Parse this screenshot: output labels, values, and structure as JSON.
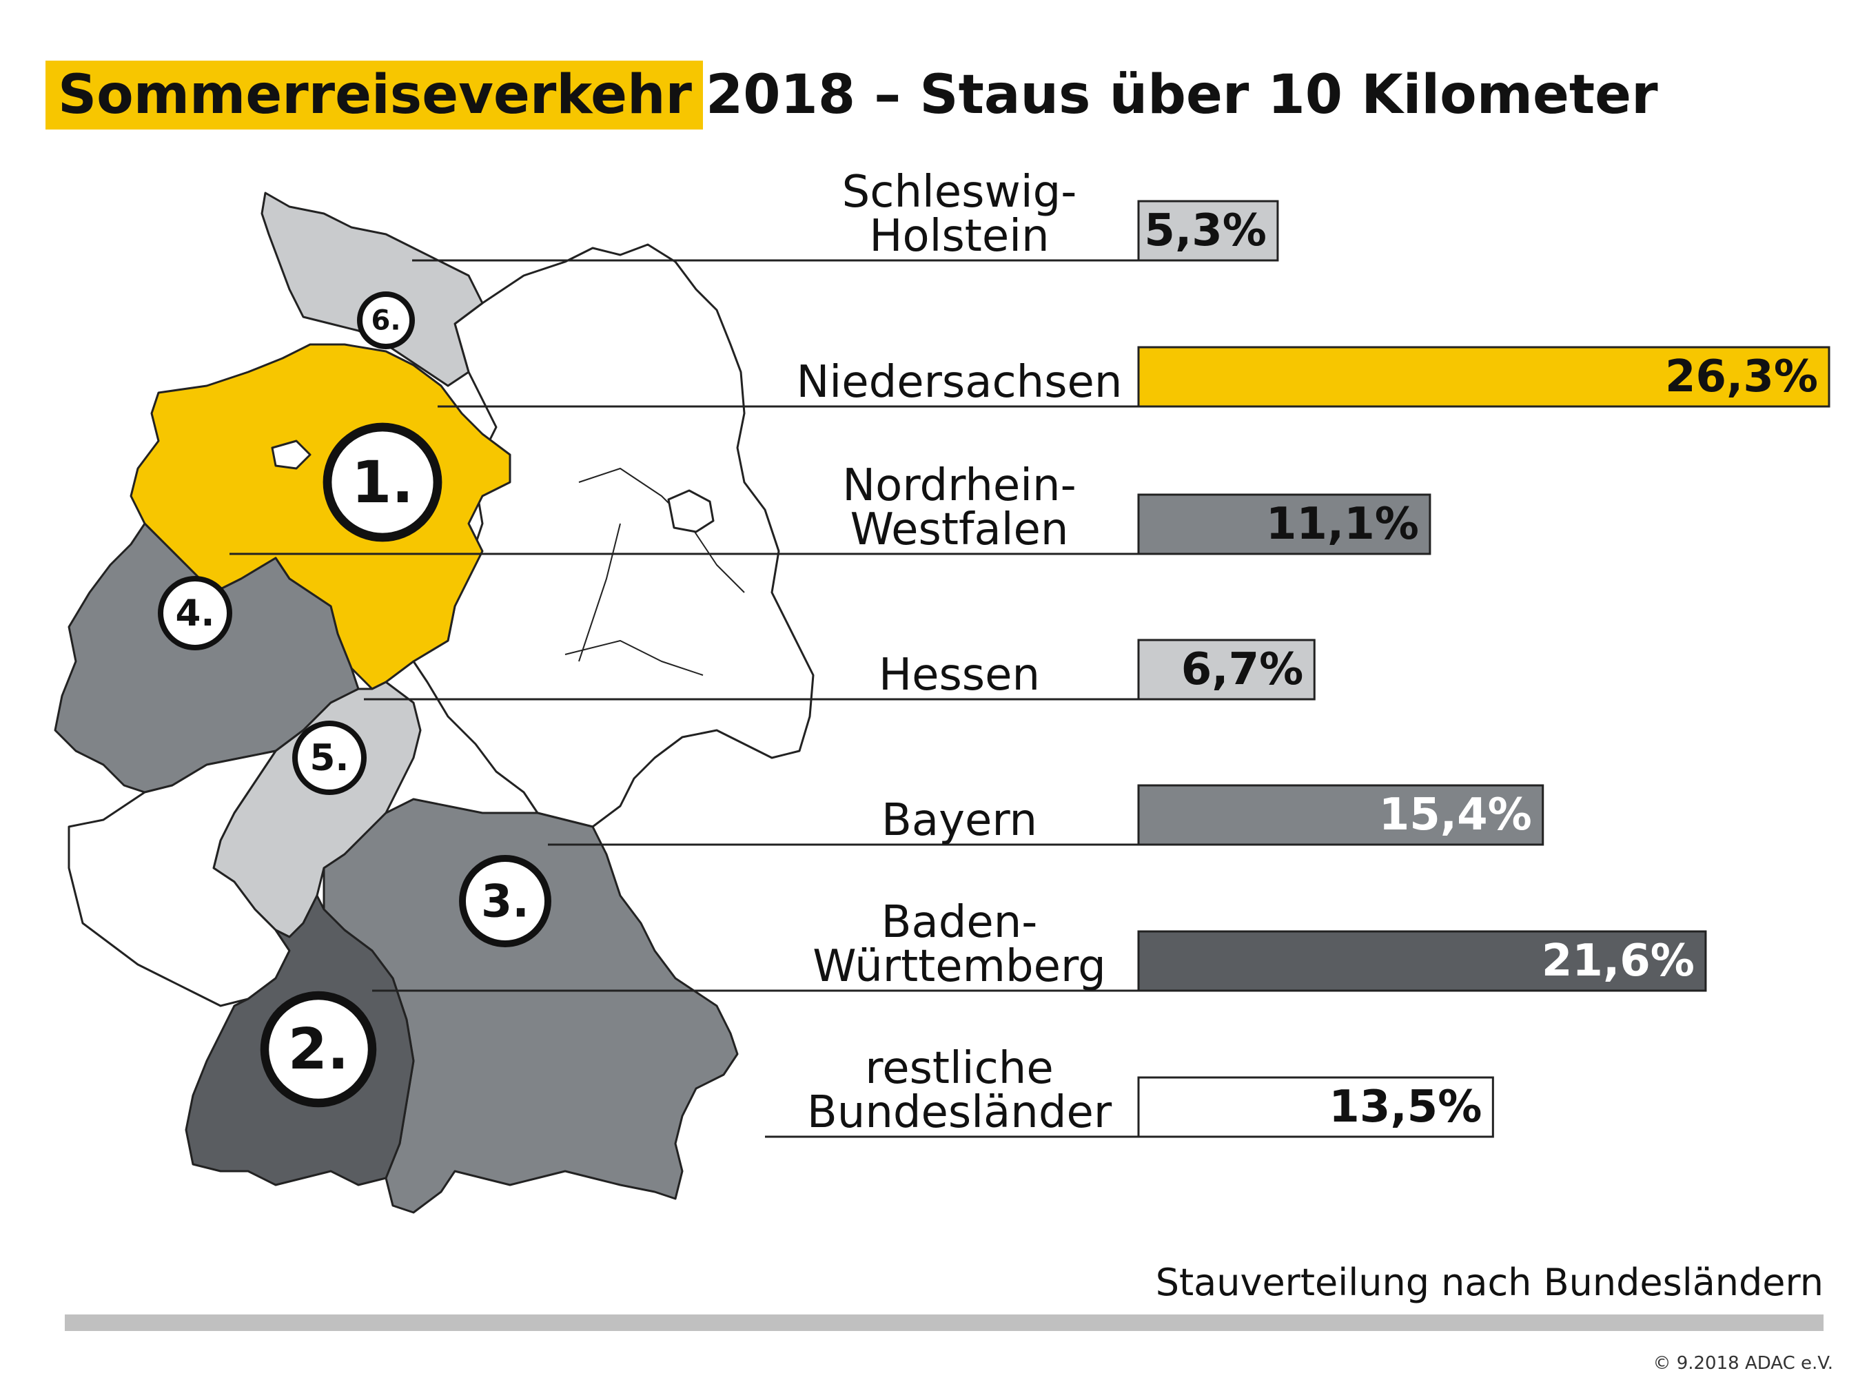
{
  "title": {
    "highlight": "Sommerreiseverkehr",
    "rest": "2018 – Staus über 10 Kilometer"
  },
  "subtitle": "Stauverteilung nach Bundesländern",
  "copyright": "© 9.2018 ADAC e.V.",
  "colors": {
    "accent": "#f7c600",
    "dark": "#5a5d61",
    "mid": "#808488",
    "light": "#c9cbcd",
    "none": "#ffffff"
  },
  "chart_data": {
    "type": "bar",
    "orientation": "horizontal",
    "unit": "%",
    "xlim": [
      0,
      26.3
    ],
    "categories": [
      {
        "label_lines": [
          "Schleswig-",
          "Holstein"
        ],
        "value": 5.3,
        "value_label": "5,3%",
        "rank": "6.",
        "color": "#c9cbcd",
        "text_color": "#111111"
      },
      {
        "label_lines": [
          "Niedersachsen"
        ],
        "value": 26.3,
        "value_label": "26,3%",
        "rank": "1.",
        "color": "#f7c600",
        "text_color": "#111111"
      },
      {
        "label_lines": [
          "Nordrhein-",
          "Westfalen"
        ],
        "value": 11.1,
        "value_label": "11,1%",
        "rank": "4.",
        "color": "#808488",
        "text_color": "#111111"
      },
      {
        "label_lines": [
          "Hessen"
        ],
        "value": 6.7,
        "value_label": "6,7%",
        "rank": "5.",
        "color": "#c9cbcd",
        "text_color": "#111111"
      },
      {
        "label_lines": [
          "Bayern"
        ],
        "value": 15.4,
        "value_label": "15,4%",
        "rank": "3.",
        "color": "#808488",
        "text_color": "#ffffff"
      },
      {
        "label_lines": [
          "Baden-",
          "Württemberg"
        ],
        "value": 21.6,
        "value_label": "21,6%",
        "rank": "2.",
        "color": "#5a5d61",
        "text_color": "#ffffff"
      },
      {
        "label_lines": [
          "restliche",
          "Bundesländer"
        ],
        "value": 13.5,
        "value_label": "13,5%",
        "rank": "",
        "color": "#ffffff",
        "text_color": "#111111"
      }
    ]
  }
}
